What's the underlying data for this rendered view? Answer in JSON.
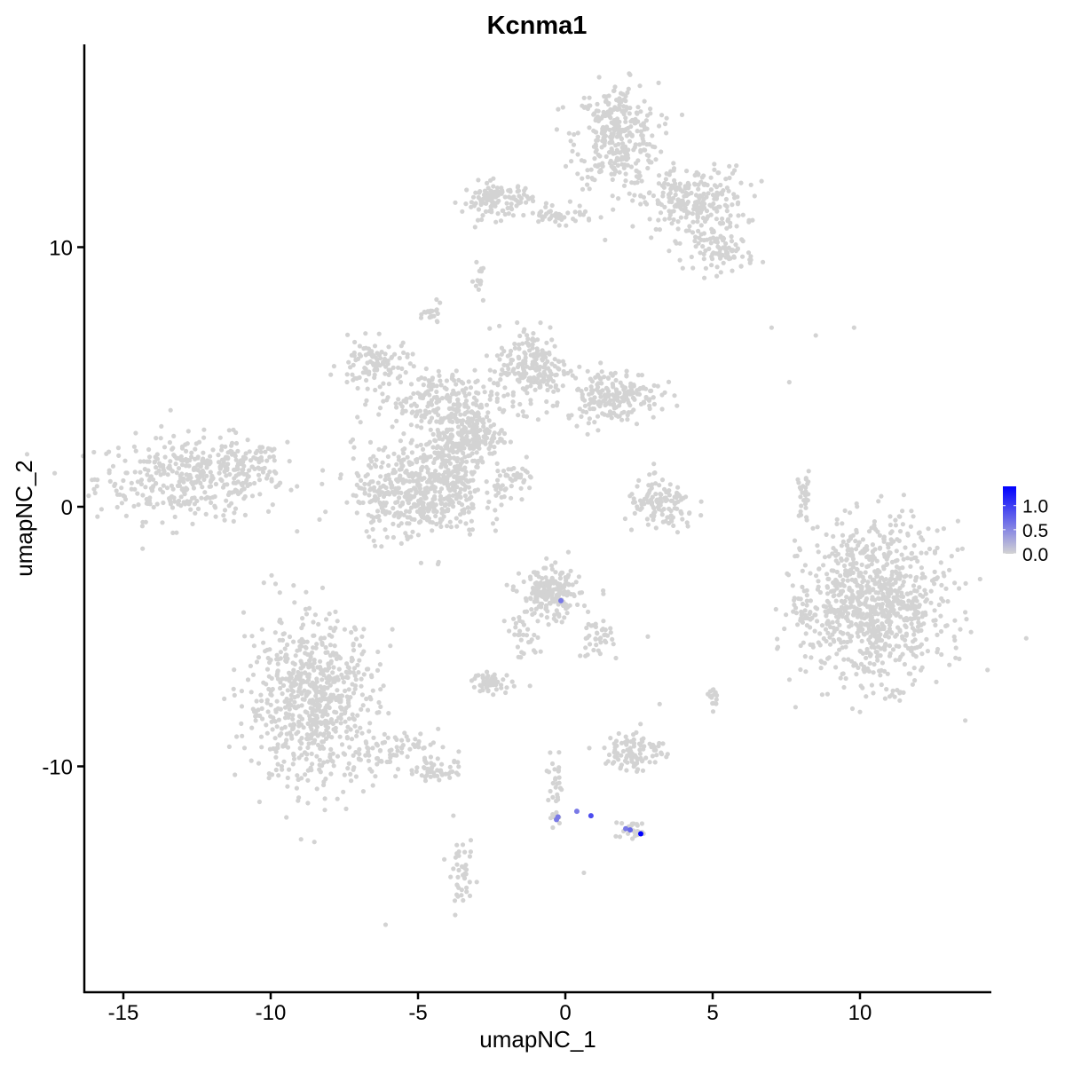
{
  "chart_data": {
    "type": "scatter",
    "title": "Kcnma1",
    "xlabel": "umapNC_1",
    "ylabel": "umapNC_2",
    "xlim": [
      -16.3,
      14.5
    ],
    "ylim": [
      -18.7,
      17.8
    ],
    "x_ticks": [
      -15,
      -10,
      -5,
      0,
      5,
      10
    ],
    "x_tick_labels": [
      "-15",
      "-10",
      "-5",
      "0",
      "5",
      "10"
    ],
    "y_ticks": [
      -10,
      0,
      10
    ],
    "y_tick_labels": [
      "-10",
      "0",
      "10"
    ],
    "grid": false,
    "colors": {
      "low": "#d3d3d3",
      "high": "#0000ff",
      "axis": "#000000"
    },
    "legend": {
      "position": "right",
      "type": "colorbar",
      "range": [
        0,
        1.4
      ],
      "ticks": [
        0,
        0.5,
        1.0
      ],
      "tick_labels": [
        "0.0",
        "0.5",
        "1.0"
      ]
    },
    "clusters": [
      {
        "center": [
          -12.7,
          1.1
        ],
        "sd": [
          1.6,
          0.8
        ],
        "n": 380
      },
      {
        "center": [
          -11.0,
          1.6
        ],
        "sd": [
          0.7,
          0.4
        ],
        "n": 60
      },
      {
        "center": [
          1.75,
          14.3
        ],
        "sd": [
          0.7,
          1.0
        ],
        "n": 320
      },
      {
        "center": [
          4.3,
          11.7
        ],
        "sd": [
          0.9,
          0.7
        ],
        "n": 260
      },
      {
        "center": [
          5.4,
          9.8
        ],
        "sd": [
          0.5,
          0.35
        ],
        "n": 80
      },
      {
        "center": [
          -2.3,
          11.8
        ],
        "sd": [
          0.6,
          0.35
        ],
        "n": 120
      },
      {
        "center": [
          -0.2,
          11.2
        ],
        "sd": [
          0.6,
          0.15
        ],
        "n": 40
      },
      {
        "center": [
          -2.9,
          8.7
        ],
        "sd": [
          0.1,
          0.3
        ],
        "n": 15
      },
      {
        "center": [
          -4.5,
          7.4
        ],
        "sd": [
          0.15,
          0.2
        ],
        "n": 20
      },
      {
        "center": [
          -6.5,
          5.5
        ],
        "sd": [
          0.6,
          0.45
        ],
        "n": 100
      },
      {
        "center": [
          -4.4,
          4.1
        ],
        "sd": [
          1.0,
          0.55
        ],
        "n": 200
      },
      {
        "center": [
          -1.1,
          5.4
        ],
        "sd": [
          0.6,
          0.8
        ],
        "n": 200
      },
      {
        "center": [
          1.6,
          4.3
        ],
        "sd": [
          0.8,
          0.5
        ],
        "n": 200
      },
      {
        "center": [
          -3.1,
          2.8
        ],
        "sd": [
          0.5,
          0.5
        ],
        "n": 150
      },
      {
        "center": [
          -4.0,
          2.0
        ],
        "sd": [
          0.6,
          0.8
        ],
        "n": 150
      },
      {
        "center": [
          -5.0,
          0.6
        ],
        "sd": [
          1.1,
          0.9
        ],
        "n": 480
      },
      {
        "center": [
          -1.6,
          1.1
        ],
        "sd": [
          0.35,
          0.3
        ],
        "n": 40
      },
      {
        "center": [
          3.25,
          0.0
        ],
        "sd": [
          0.6,
          0.5
        ],
        "n": 120
      },
      {
        "center": [
          8.1,
          0.4
        ],
        "sd": [
          0.12,
          0.5
        ],
        "n": 30
      },
      {
        "center": [
          10.5,
          -3.7
        ],
        "sd": [
          1.2,
          1.5
        ],
        "n": 900
      },
      {
        "center": [
          8.1,
          -4.0
        ],
        "sd": [
          0.2,
          0.6
        ],
        "n": 30
      },
      {
        "center": [
          -8.6,
          -7.5
        ],
        "sd": [
          1.1,
          1.6
        ],
        "n": 700
      },
      {
        "center": [
          -5.8,
          -9.4
        ],
        "sd": [
          0.8,
          0.4
        ],
        "n": 80
      },
      {
        "center": [
          -4.3,
          -10.2
        ],
        "sd": [
          0.4,
          0.2
        ],
        "n": 40
      },
      {
        "center": [
          -0.5,
          -3.4
        ],
        "sd": [
          0.5,
          0.5
        ],
        "n": 200
      },
      {
        "center": [
          1.0,
          -5.0
        ],
        "sd": [
          0.3,
          0.4
        ],
        "n": 40
      },
      {
        "center": [
          -1.4,
          -5.0
        ],
        "sd": [
          0.3,
          0.4
        ],
        "n": 30
      },
      {
        "center": [
          -2.5,
          -6.8
        ],
        "sd": [
          0.35,
          0.2
        ],
        "n": 50
      },
      {
        "center": [
          2.35,
          -9.4
        ],
        "sd": [
          0.5,
          0.4
        ],
        "n": 100
      },
      {
        "center": [
          -3.5,
          -14.3
        ],
        "sd": [
          0.2,
          0.6
        ],
        "n": 40
      },
      {
        "center": [
          5.05,
          -7.3
        ],
        "sd": [
          0.1,
          0.2
        ],
        "n": 15
      },
      {
        "center": [
          -0.35,
          -10.7
        ],
        "sd": [
          0.15,
          0.5
        ],
        "n": 25
      },
      {
        "center": [
          2.3,
          -12.5
        ],
        "sd": [
          0.3,
          0.2
        ],
        "n": 25
      },
      {
        "center": [
          -0.3,
          -12.0
        ],
        "sd": [
          0.15,
          0.15
        ],
        "n": 10
      }
    ],
    "isolated_points": [
      [
        -6.1,
        -16.1
      ],
      [
        0.63,
        -14.1
      ],
      [
        9.8,
        6.9
      ],
      [
        8.5,
        6.6
      ],
      [
        7.0,
        6.9
      ],
      [
        7.6,
        4.8
      ],
      [
        2.8,
        -5.0
      ],
      [
        -3.8,
        -11.9
      ],
      [
        -2.8,
        -6.5
      ],
      [
        -1.2,
        -6.9
      ],
      [
        3.2,
        -7.6
      ]
    ],
    "expressed_points": [
      {
        "x": -0.15,
        "y": -3.62,
        "value": 0.6
      },
      {
        "x": -0.3,
        "y": -12.05,
        "value": 0.6
      },
      {
        "x": -0.25,
        "y": -11.95,
        "value": 0.6
      },
      {
        "x": 0.39,
        "y": -11.73,
        "value": 0.6
      },
      {
        "x": 0.87,
        "y": -11.9,
        "value": 0.9
      },
      {
        "x": 2.05,
        "y": -12.4,
        "value": 0.6
      },
      {
        "x": 2.2,
        "y": -12.45,
        "value": 0.7
      },
      {
        "x": 2.56,
        "y": -12.6,
        "value": 1.4
      }
    ]
  }
}
